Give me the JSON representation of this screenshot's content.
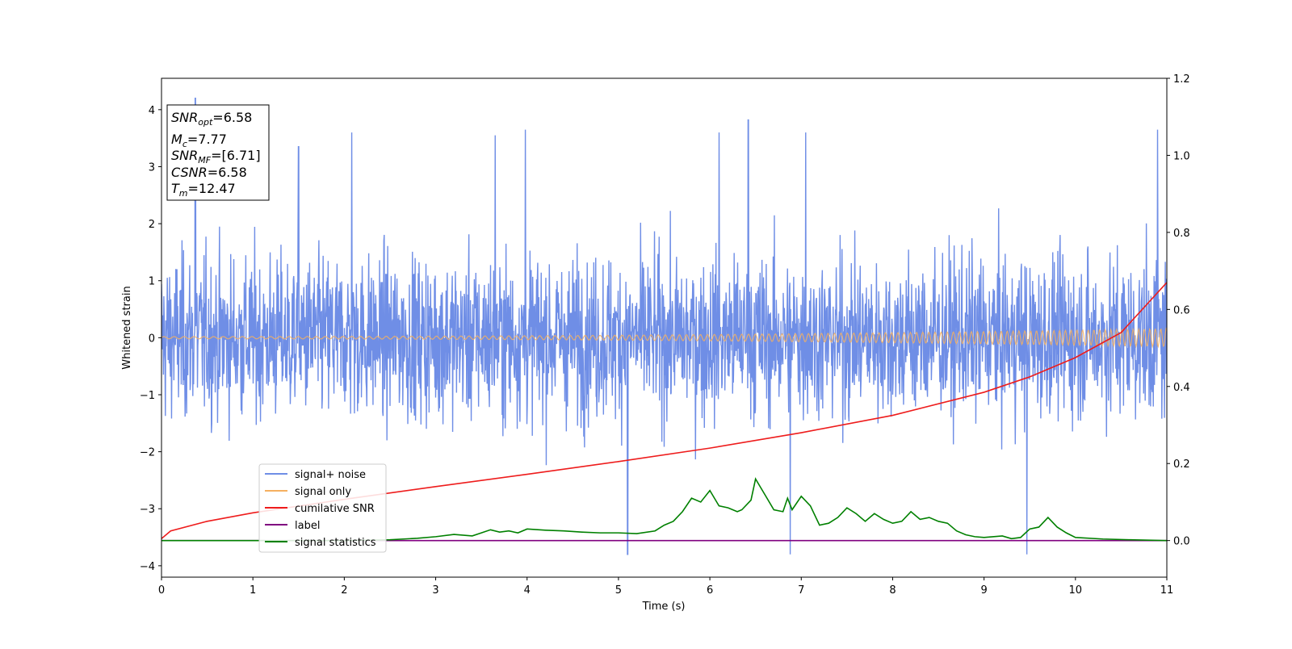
{
  "chart_data": {
    "type": "line",
    "title": "",
    "xlabel": "Time (s)",
    "ylabel": "Whitened strain",
    "xlim": [
      0,
      11
    ],
    "ylim": [
      -4.2,
      4.55
    ],
    "y2lim": [
      -0.095,
      1.2
    ],
    "x_ticks": [
      0,
      1,
      2,
      3,
      4,
      5,
      6,
      7,
      8,
      9,
      10,
      11
    ],
    "y_ticks": [
      -4,
      -3,
      -2,
      -1,
      0,
      1,
      2,
      3,
      4
    ],
    "y2_ticks": [
      0.0,
      0.2,
      0.4,
      0.6,
      0.8,
      1.0,
      1.2
    ],
    "x_tick_labels": [
      "0",
      "1",
      "2",
      "3",
      "4",
      "5",
      "6",
      "7",
      "8",
      "9",
      "10",
      "11"
    ],
    "y_tick_labels": [
      "−4",
      "−3",
      "−2",
      "−1",
      "0",
      "1",
      "2",
      "3",
      "4"
    ],
    "y2_tick_labels": [
      "0.0",
      "0.2",
      "0.4",
      "0.6",
      "0.8",
      "1.0",
      "1.2"
    ],
    "grid": false,
    "legend_position": "lower-left",
    "series": [
      {
        "name": "signal+ noise",
        "axis": "left",
        "color": "#6f8ee6",
        "description_envelope": {
          "typical_amplitude": 1.6,
          "min": -3.8,
          "max": 4.2
        },
        "sample_peaks": [
          {
            "x": 0.37,
            "y": 4.2
          },
          {
            "x": 1.5,
            "y": 3.35
          },
          {
            "x": 2.08,
            "y": 3.6
          },
          {
            "x": 3.65,
            "y": 3.55
          },
          {
            "x": 3.98,
            "y": 3.65
          },
          {
            "x": 6.1,
            "y": 3.6
          },
          {
            "x": 6.42,
            "y": 3.82
          },
          {
            "x": 7.05,
            "y": 3.6
          },
          {
            "x": 10.9,
            "y": 3.65
          },
          {
            "x": 5.1,
            "y": -3.8
          },
          {
            "x": 6.88,
            "y": -3.8
          },
          {
            "x": 9.47,
            "y": -3.8
          }
        ]
      },
      {
        "name": "signal only",
        "axis": "left",
        "color": "#f5b060",
        "amplitude_start": 0.02,
        "amplitude_end": 0.16
      },
      {
        "name": "cumilative SNR",
        "axis": "right",
        "color": "#ee1c1c",
        "x": [
          0,
          0.1,
          0.5,
          1,
          2,
          3,
          4,
          5,
          6,
          7,
          8,
          9,
          9.5,
          10,
          10.5,
          11
        ],
        "y": [
          0.005,
          0.025,
          0.05,
          0.072,
          0.107,
          0.14,
          0.172,
          0.205,
          0.24,
          0.28,
          0.325,
          0.385,
          0.425,
          0.475,
          0.54,
          0.67
        ]
      },
      {
        "name": "label",
        "axis": "right",
        "color": "#800080",
        "x": [
          0,
          11
        ],
        "y": [
          0,
          0
        ]
      },
      {
        "name": "signal statistics",
        "axis": "right",
        "color": "#008000",
        "x": [
          0,
          1,
          2,
          2.5,
          2.8,
          3.0,
          3.2,
          3.4,
          3.5,
          3.6,
          3.7,
          3.8,
          3.9,
          4.0,
          4.2,
          4.4,
          4.6,
          4.8,
          5.0,
          5.2,
          5.4,
          5.5,
          5.6,
          5.7,
          5.8,
          5.9,
          6.0,
          6.1,
          6.2,
          6.3,
          6.35,
          6.45,
          6.5,
          6.55,
          6.6,
          6.7,
          6.8,
          6.85,
          6.9,
          7.0,
          7.1,
          7.2,
          7.3,
          7.4,
          7.5,
          7.6,
          7.7,
          7.8,
          7.9,
          8.0,
          8.1,
          8.2,
          8.3,
          8.4,
          8.5,
          8.6,
          8.7,
          8.8,
          8.9,
          9.0,
          9.2,
          9.3,
          9.4,
          9.5,
          9.6,
          9.7,
          9.8,
          9.9,
          10.0,
          10.3,
          10.6,
          11.0
        ],
        "y": [
          0.0,
          0.0,
          0.0,
          0.002,
          0.006,
          0.01,
          0.016,
          0.012,
          0.02,
          0.028,
          0.022,
          0.025,
          0.02,
          0.03,
          0.027,
          0.025,
          0.022,
          0.02,
          0.02,
          0.018,
          0.025,
          0.04,
          0.05,
          0.075,
          0.11,
          0.1,
          0.13,
          0.09,
          0.085,
          0.075,
          0.08,
          0.105,
          0.16,
          0.14,
          0.12,
          0.08,
          0.075,
          0.11,
          0.08,
          0.115,
          0.09,
          0.04,
          0.045,
          0.06,
          0.085,
          0.07,
          0.05,
          0.07,
          0.055,
          0.045,
          0.05,
          0.075,
          0.055,
          0.06,
          0.05,
          0.045,
          0.025,
          0.015,
          0.01,
          0.008,
          0.012,
          0.005,
          0.008,
          0.03,
          0.035,
          0.06,
          0.035,
          0.02,
          0.008,
          0.004,
          0.002,
          0.0
        ]
      }
    ]
  },
  "annotation": {
    "lines": [
      {
        "var": "SNR",
        "sub": "opt",
        "value": "=6.58"
      },
      {
        "var": "M",
        "sub": "c",
        "value": "=7.77"
      },
      {
        "var": "SNR",
        "sub": "MF",
        "value": "=[6.71]"
      },
      {
        "var": "CSNR",
        "sub": "",
        "value": "=6.58"
      },
      {
        "var": "T",
        "sub": "m",
        "value": "=12.47"
      }
    ]
  },
  "legend": {
    "entries": [
      {
        "label": "signal+ noise",
        "color": "#6f8ee6"
      },
      {
        "label": "signal only",
        "color": "#f5b060"
      },
      {
        "label": "cumilative SNR",
        "color": "#ee1c1c"
      },
      {
        "label": "label",
        "color": "#800080"
      },
      {
        "label": "signal statistics",
        "color": "#008000"
      }
    ]
  }
}
